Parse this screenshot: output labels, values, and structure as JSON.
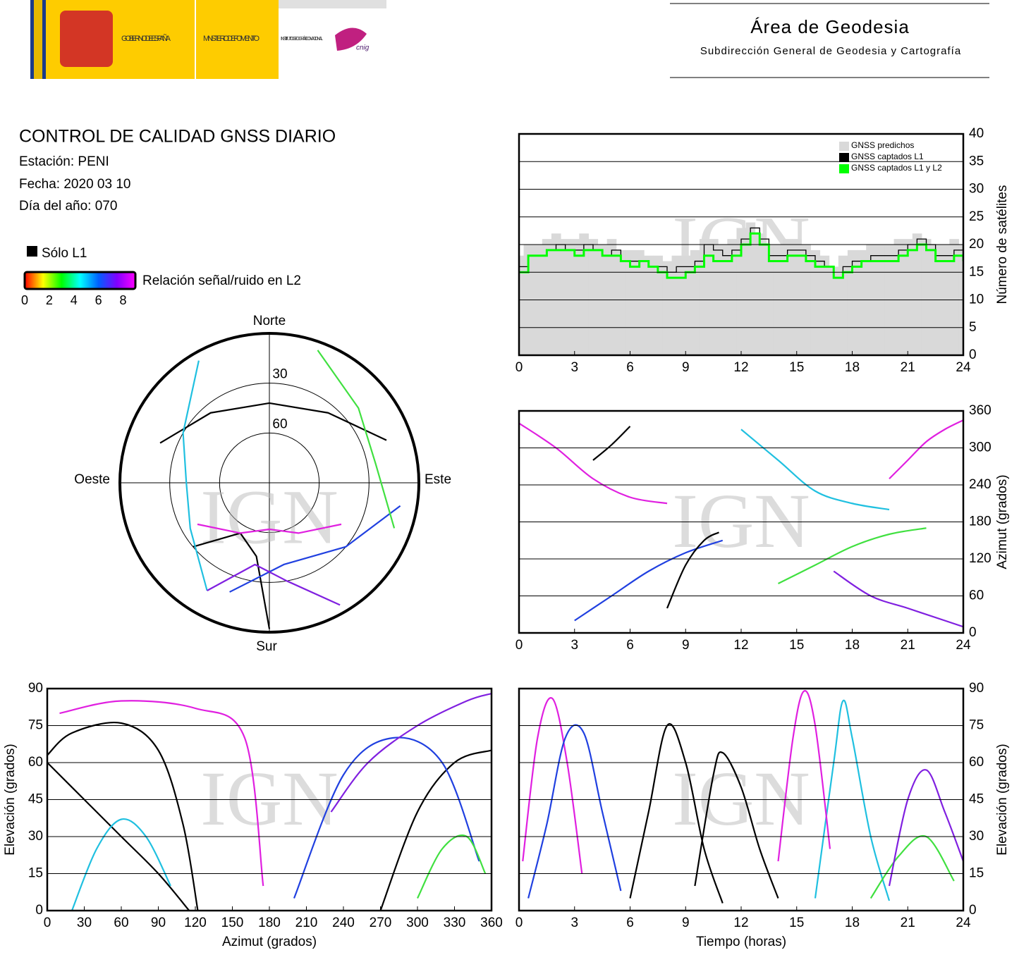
{
  "header": {
    "logo_gov": "GOBIERNO DE ESPAÑA",
    "logo_ministry": "MINISTERIO DE FOMENTO",
    "logo_institute": "INSTITUTO GEOGRÁFICO NACIONAL",
    "logo_cnig": "cnig",
    "title": "Área de Geodesia",
    "subtitle": "Subdirección General de Geodesia y Cartografía"
  },
  "report": {
    "title": "CONTROL DE CALIDAD GNSS DIARIO",
    "station": "Estación: PENI",
    "date": "Fecha: 2020 03 10",
    "doy": "Día del año: 070"
  },
  "legend": {
    "solo_l1": "Sólo L1",
    "solo_l1_color": "#000000",
    "colorbar_label": "Relación señal/ruido en L2",
    "colorbar_ticks": [
      0,
      2,
      4,
      6,
      8
    ],
    "colorbar_range": [
      0,
      9
    ],
    "colorbar_colors": [
      "#ff0000",
      "#ffff00",
      "#00ff00",
      "#00ffff",
      "#0060ff",
      "#8000ff",
      "#ff00ff"
    ]
  },
  "watermark": "IGN",
  "chart_data": [
    {
      "type": "steps",
      "ylabel": "Número de satélites",
      "xlim": [
        0,
        24
      ],
      "xticks": [
        0,
        3,
        6,
        9,
        12,
        15,
        18,
        21,
        24
      ],
      "ylim": [
        0,
        40
      ],
      "yticks": [
        0,
        5,
        10,
        15,
        20,
        25,
        30,
        35,
        40
      ],
      "grid": true,
      "x": [
        0,
        0.5,
        1,
        1.5,
        2,
        2.5,
        3,
        3.5,
        4,
        4.5,
        5,
        5.5,
        6,
        6.5,
        7,
        7.5,
        8,
        8.5,
        9,
        9.5,
        10,
        10.5,
        11,
        11.5,
        12,
        12.5,
        13,
        13.5,
        14,
        14.5,
        15,
        15.5,
        16,
        16.5,
        17,
        17.5,
        18,
        18.5,
        19,
        19.5,
        20,
        20.5,
        21,
        21.5,
        22,
        22.5,
        23,
        23.5,
        24
      ],
      "series": [
        {
          "name": "GNSS predichos",
          "color": "#d9d9d9",
          "style": "bars",
          "values": [
            18,
            20,
            20,
            21,
            22,
            21,
            21,
            22,
            21,
            20,
            21,
            19,
            19,
            19,
            18,
            18,
            17,
            18,
            18,
            19,
            21,
            21,
            20,
            21,
            23,
            24,
            22,
            20,
            20,
            21,
            21,
            20,
            19,
            18,
            16,
            18,
            19,
            19,
            20,
            20,
            20,
            21,
            21,
            22,
            21,
            20,
            20,
            21,
            20
          ]
        },
        {
          "name": "GNSS captados L1",
          "color": "#000000",
          "style": "step",
          "values": [
            16,
            18,
            18,
            19,
            20,
            19,
            19,
            20,
            19,
            18,
            19,
            17,
            17,
            17,
            16,
            16,
            15,
            16,
            16,
            17,
            20,
            19,
            18,
            19,
            21,
            23,
            21,
            18,
            18,
            19,
            19,
            18,
            17,
            16,
            14,
            16,
            17,
            17,
            18,
            18,
            18,
            19,
            20,
            21,
            20,
            18,
            18,
            19,
            18
          ]
        },
        {
          "name": "GNSS captados L1 y L2",
          "color": "#00ff00",
          "style": "step",
          "values": [
            15,
            18,
            18,
            19,
            19,
            19,
            18,
            19,
            19,
            18,
            18,
            17,
            16,
            17,
            16,
            15,
            14,
            14,
            15,
            16,
            18,
            17,
            17,
            18,
            20,
            22,
            20,
            17,
            17,
            18,
            18,
            17,
            16,
            16,
            14,
            15,
            16,
            17,
            17,
            17,
            17,
            18,
            19,
            20,
            19,
            17,
            17,
            18,
            17
          ]
        }
      ]
    },
    {
      "type": "line",
      "ylabel": "Azimut (grados)",
      "xlim": [
        0,
        24
      ],
      "xticks": [
        0,
        3,
        6,
        9,
        12,
        15,
        18,
        21,
        24
      ],
      "ylim": [
        0,
        360
      ],
      "yticks": [
        0,
        60,
        120,
        180,
        240,
        300,
        360
      ],
      "grid": true,
      "series": [
        {
          "color": "#e020e0",
          "x": [
            0,
            2,
            4,
            6,
            8
          ],
          "values": [
            340,
            300,
            250,
            220,
            210
          ]
        },
        {
          "color": "#2040e0",
          "x": [
            3,
            5,
            7,
            9,
            11
          ],
          "values": [
            20,
            60,
            100,
            130,
            150
          ]
        },
        {
          "color": "#000000",
          "x": [
            8,
            9,
            10,
            10.8
          ],
          "values": [
            40,
            110,
            150,
            163
          ]
        },
        {
          "color": "#000000",
          "x": [
            4,
            5,
            6
          ],
          "values": [
            280,
            305,
            335
          ]
        },
        {
          "color": "#20c0e0",
          "x": [
            12,
            14,
            16,
            18,
            20
          ],
          "values": [
            330,
            280,
            230,
            210,
            200
          ]
        },
        {
          "color": "#40e040",
          "x": [
            14,
            16,
            18,
            20,
            22
          ],
          "values": [
            80,
            110,
            140,
            160,
            170
          ]
        },
        {
          "color": "#8020e0",
          "x": [
            17,
            19,
            21,
            23,
            24
          ],
          "values": [
            100,
            60,
            40,
            20,
            10
          ]
        },
        {
          "color": "#e020e0",
          "x": [
            20,
            21,
            22,
            23,
            24
          ],
          "values": [
            250,
            280,
            310,
            330,
            345
          ]
        }
      ]
    },
    {
      "type": "polar",
      "rlim": [
        0,
        90
      ],
      "rticks": [
        30,
        60
      ],
      "directions": [
        "Norte",
        "Este",
        "Sur",
        "Oeste"
      ],
      "series": [
        {
          "color": "#000000",
          "x": [
            290,
            320,
            0,
            40,
            70
          ],
          "values": [
            20,
            35,
            42,
            35,
            15
          ]
        },
        {
          "color": "#000000",
          "x": [
            230,
            210,
            190,
            180
          ],
          "values": [
            30,
            55,
            45,
            2
          ]
        },
        {
          "color": "#e020e0",
          "x": [
            120,
            150,
            180,
            210,
            240
          ],
          "values": [
            40,
            55,
            62,
            55,
            40
          ]
        },
        {
          "color": "#2040e0",
          "x": [
            100,
            130,
            170,
            200
          ],
          "values": [
            10,
            30,
            40,
            20
          ]
        },
        {
          "color": "#20c0e0",
          "x": [
            330,
            300,
            270,
            240,
            210
          ],
          "values": [
            5,
            30,
            40,
            35,
            15
          ]
        },
        {
          "color": "#40e040",
          "x": [
            20,
            50,
            80,
            110
          ],
          "values": [
            5,
            20,
            25,
            10
          ]
        },
        {
          "color": "#8020e0",
          "x": [
            150,
            170,
            190,
            210
          ],
          "values": [
            5,
            30,
            40,
            15
          ]
        }
      ]
    },
    {
      "type": "line",
      "xlabel": "Azimut (grados)",
      "ylabel": "Elevación (grados)",
      "xlim": [
        0,
        360
      ],
      "xticks": [
        0,
        30,
        60,
        90,
        120,
        150,
        180,
        210,
        240,
        270,
        300,
        330,
        360
      ],
      "ylim": [
        0,
        90
      ],
      "yticks": [
        0,
        15,
        30,
        45,
        60,
        75,
        90
      ],
      "grid": true,
      "series": [
        {
          "color": "#000000",
          "x": [
            0,
            20,
            60,
            90,
            110,
            122
          ],
          "values": [
            63,
            72,
            76,
            65,
            35,
            0
          ]
        },
        {
          "color": "#000000",
          "x": [
            0,
            30,
            60,
            90,
            115
          ],
          "values": [
            60,
            45,
            30,
            15,
            0
          ]
        },
        {
          "color": "#e020e0",
          "x": [
            10,
            60,
            120,
            160,
            175
          ],
          "values": [
            80,
            85,
            82,
            70,
            10
          ]
        },
        {
          "color": "#000000",
          "x": [
            270,
            300,
            330,
            360
          ],
          "values": [
            0,
            40,
            60,
            65
          ]
        },
        {
          "color": "#2040e0",
          "x": [
            200,
            240,
            280,
            320,
            350
          ],
          "values": [
            5,
            55,
            70,
            60,
            20
          ]
        },
        {
          "color": "#20c0e0",
          "x": [
            20,
            40,
            60,
            80,
            100
          ],
          "values": [
            0,
            25,
            37,
            30,
            10
          ]
        },
        {
          "color": "#40e040",
          "x": [
            300,
            320,
            340,
            355
          ],
          "values": [
            5,
            25,
            30,
            15
          ]
        },
        {
          "color": "#8020e0",
          "x": [
            230,
            260,
            300,
            340,
            360
          ],
          "values": [
            40,
            60,
            75,
            85,
            88
          ]
        }
      ]
    },
    {
      "type": "line",
      "xlabel": "Tiempo (horas)",
      "ylabel": "Elevación (grados)",
      "xlim": [
        0,
        24
      ],
      "xticks": [
        0,
        3,
        6,
        9,
        12,
        15,
        18,
        21,
        24
      ],
      "ylim": [
        0,
        90
      ],
      "yticks": [
        0,
        15,
        30,
        45,
        60,
        75,
        90
      ],
      "grid": true,
      "series": [
        {
          "color": "#e020e0",
          "x": [
            0.2,
            1,
            1.8,
            2.6,
            3.4
          ],
          "values": [
            20,
            70,
            86,
            60,
            15
          ]
        },
        {
          "color": "#2040e0",
          "x": [
            0.5,
            1.5,
            2.5,
            3.5,
            4.5,
            5.5
          ],
          "values": [
            5,
            35,
            70,
            72,
            40,
            8
          ]
        },
        {
          "color": "#000000",
          "x": [
            6,
            7,
            8,
            9,
            10,
            11
          ],
          "values": [
            5,
            40,
            75,
            60,
            25,
            3
          ]
        },
        {
          "color": "#000000",
          "x": [
            9.5,
            10.5,
            11,
            12,
            13,
            14
          ],
          "values": [
            10,
            55,
            64,
            50,
            25,
            5
          ]
        },
        {
          "color": "#20c0e0",
          "x": [
            16,
            17,
            17.5,
            18,
            19,
            20
          ],
          "values": [
            5,
            60,
            85,
            70,
            30,
            4
          ]
        },
        {
          "color": "#e020e0",
          "x": [
            14,
            14.8,
            15.4,
            16,
            16.8
          ],
          "values": [
            20,
            70,
            89,
            75,
            25
          ]
        },
        {
          "color": "#40e040",
          "x": [
            19,
            20.5,
            22,
            23.5
          ],
          "values": [
            5,
            22,
            30,
            12
          ]
        },
        {
          "color": "#8020e0",
          "x": [
            20,
            21,
            22,
            23,
            24
          ],
          "values": [
            10,
            45,
            57,
            40,
            20
          ]
        }
      ]
    }
  ]
}
